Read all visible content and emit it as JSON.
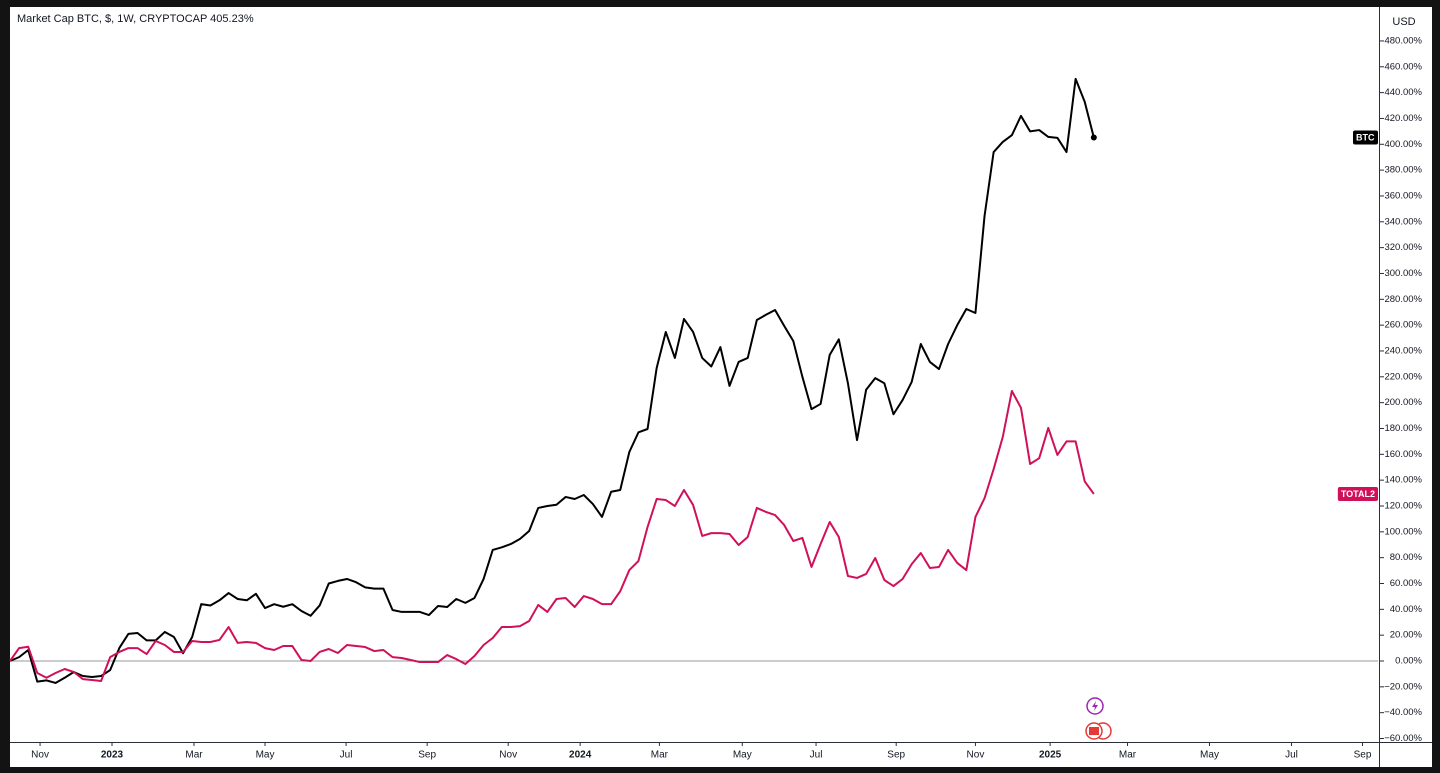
{
  "chart_data": {
    "type": "line",
    "title": "Market Cap BTC, $, 1W, CRYPTOCAP 405.23%",
    "y_axis_label": "USD",
    "x": [
      0,
      1,
      2,
      3,
      4,
      5,
      6,
      7,
      8,
      9,
      10,
      11,
      12,
      13,
      14,
      15,
      16,
      17,
      18,
      19,
      20,
      21,
      22,
      23,
      24,
      25,
      26,
      27,
      28,
      29,
      30,
      31,
      32,
      33,
      34,
      35,
      36,
      37,
      38,
      39,
      40,
      41,
      42,
      43,
      44,
      45,
      46,
      47,
      48,
      49,
      50,
      51,
      52,
      53,
      54,
      55,
      56,
      57,
      58,
      59,
      60,
      61,
      62,
      63,
      64,
      65,
      66,
      67,
      68,
      69,
      70,
      71,
      72,
      73,
      74,
      75,
      76,
      77,
      78,
      79,
      80,
      81,
      82,
      83,
      84,
      85,
      86,
      87,
      88,
      89,
      90,
      91,
      92,
      93,
      94,
      95,
      96,
      97,
      98,
      99,
      100,
      101,
      102,
      103,
      104,
      105,
      106,
      107,
      108,
      109,
      110,
      111,
      112,
      113,
      114,
      115,
      116,
      117,
      118,
      119
    ],
    "series": [
      {
        "name": "BTC",
        "color": "#000000",
        "values": [
          0,
          3,
          8.5,
          -16,
          -15,
          -17,
          -13,
          -8.5,
          -11.6,
          -12.4,
          -11.6,
          -7,
          10,
          21,
          21.7,
          16,
          16,
          22.5,
          18.6,
          6,
          18.6,
          44,
          43,
          47,
          52.6,
          48,
          47,
          52,
          41,
          44,
          42,
          44,
          38.7,
          35,
          43,
          60,
          62,
          63.5,
          61,
          57,
          56,
          56,
          39.5,
          38,
          38,
          38,
          35.6,
          42.6,
          41.8,
          48,
          45,
          48.8,
          63.5,
          86,
          88,
          90.6,
          94.5,
          100.6,
          118.5,
          120,
          121,
          127,
          125.4,
          128.5,
          121.5,
          111.5,
          131,
          132.4,
          161.8,
          177,
          179.6,
          226.8,
          254.7,
          234.6,
          264.8,
          254.7,
          234.6,
          228,
          243,
          213,
          231.5,
          234.6,
          264,
          268,
          271.7,
          259.4,
          247.7,
          220,
          195,
          199,
          237,
          249,
          215,
          171,
          210,
          219,
          215,
          191,
          202,
          216,
          245.4,
          231.5,
          226,
          245.4,
          260,
          272.5,
          269.4,
          344.5,
          394,
          401.8,
          407,
          422,
          410,
          411,
          405.7,
          405,
          394,
          450.6,
          432.8,
          405.23
        ]
      },
      {
        "name": "TOTAL2",
        "color": "#d1105a",
        "values": [
          0,
          10,
          11,
          -9.3,
          -13,
          -9.3,
          -6.2,
          -8.5,
          -14,
          -14.7,
          -15.5,
          3,
          7,
          10,
          10,
          5.4,
          15.5,
          12.4,
          7,
          7,
          15.5,
          14.7,
          14.7,
          16.3,
          26.3,
          14,
          14.7,
          14,
          10,
          8.5,
          11.6,
          11.6,
          0.8,
          0,
          7,
          9.3,
          6.2,
          12.4,
          11.6,
          10.8,
          7.7,
          8.5,
          3,
          2.3,
          0.8,
          -0.8,
          -0.8,
          -0.8,
          4.6,
          1.5,
          -2.3,
          3.9,
          12.4,
          17.8,
          26.3,
          26.3,
          27,
          31,
          43.4,
          38,
          48,
          48.8,
          41.8,
          50.3,
          48,
          44,
          44,
          54,
          70.4,
          77.4,
          103.7,
          125.4,
          124.6,
          120,
          132.4,
          120.8,
          96.8,
          99,
          99,
          98.3,
          89.8,
          96,
          118.5,
          115.4,
          113,
          105.3,
          92.9,
          95.3,
          72.8,
          90.6,
          107.6,
          96,
          65.8,
          64.3,
          67.4,
          79.7,
          62.7,
          58,
          63.5,
          75,
          83.6,
          72,
          72.8,
          86,
          75.9,
          70.4,
          111.5,
          126,
          148.6,
          173.4,
          209,
          196,
          152.5,
          157,
          180.4,
          159.5,
          170,
          170,
          139,
          129.3
        ]
      }
    ],
    "xlim": [
      0,
      150.2
    ],
    "xticks": [
      {
        "value": 3.3,
        "label": "Nov"
      },
      {
        "value": 11.2,
        "label": "2023"
      },
      {
        "value": 20.2,
        "label": "Mar"
      },
      {
        "value": 28.0,
        "label": "May"
      },
      {
        "value": 36.9,
        "label": "Jul"
      },
      {
        "value": 45.8,
        "label": "Sep"
      },
      {
        "value": 54.7,
        "label": "Nov"
      },
      {
        "value": 62.6,
        "label": "2024"
      },
      {
        "value": 71.3,
        "label": "Mar"
      },
      {
        "value": 80.4,
        "label": "May"
      },
      {
        "value": 88.5,
        "label": "Jul"
      },
      {
        "value": 97.3,
        "label": "Sep"
      },
      {
        "value": 106.0,
        "label": "Nov"
      },
      {
        "value": 114.2,
        "label": "2025"
      },
      {
        "value": 122.7,
        "label": "Mar"
      },
      {
        "value": 131.7,
        "label": "May"
      },
      {
        "value": 140.7,
        "label": "Jul"
      },
      {
        "value": 148.5,
        "label": "Sep"
      }
    ],
    "ylim": [
      -62.7,
      505.5
    ],
    "yticks": [
      {
        "value": -60,
        "label": "−60.00%"
      },
      {
        "value": -40,
        "label": "−40.00%"
      },
      {
        "value": -20,
        "label": "−20.00%"
      },
      {
        "value": 0,
        "label": "0.00%"
      },
      {
        "value": 20,
        "label": "20.00%"
      },
      {
        "value": 40,
        "label": "40.00%"
      },
      {
        "value": 60,
        "label": "60.00%"
      },
      {
        "value": 80,
        "label": "80.00%"
      },
      {
        "value": 100,
        "label": "100.00%"
      },
      {
        "value": 120,
        "label": "120.00%"
      },
      {
        "value": 140,
        "label": "140.00%"
      },
      {
        "value": 160,
        "label": "160.00%"
      },
      {
        "value": 180,
        "label": "180.00%"
      },
      {
        "value": 200,
        "label": "200.00%"
      },
      {
        "value": 220,
        "label": "220.00%"
      },
      {
        "value": 240,
        "label": "240.00%"
      },
      {
        "value": 260,
        "label": "260.00%"
      },
      {
        "value": 280,
        "label": "280.00%"
      },
      {
        "value": 300,
        "label": "300.00%"
      },
      {
        "value": 320,
        "label": "320.00%"
      },
      {
        "value": 340,
        "label": "340.00%"
      },
      {
        "value": 360,
        "label": "360.00%"
      },
      {
        "value": 380,
        "label": "380.00%"
      },
      {
        "value": 400,
        "label": "400.00%"
      },
      {
        "value": 420,
        "label": "420.00%"
      },
      {
        "value": 440,
        "label": "440.00%"
      },
      {
        "value": 460,
        "label": "460.00%"
      },
      {
        "value": 480,
        "label": "480.00%"
      }
    ],
    "grid": false
  }
}
